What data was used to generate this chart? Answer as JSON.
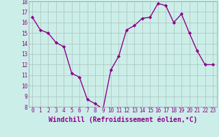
{
  "x": [
    0,
    1,
    2,
    3,
    4,
    5,
    6,
    7,
    8,
    9,
    10,
    11,
    12,
    13,
    14,
    15,
    16,
    17,
    18,
    19,
    20,
    21,
    22,
    23
  ],
  "y": [
    16.5,
    15.3,
    15.0,
    14.1,
    13.7,
    11.2,
    10.8,
    8.7,
    8.3,
    7.8,
    11.5,
    12.8,
    15.3,
    15.7,
    16.4,
    16.5,
    17.8,
    17.6,
    16.0,
    16.8,
    15.0,
    13.3,
    12.0,
    12.0
  ],
  "line_color": "#8b008b",
  "marker": "D",
  "marker_size": 2.2,
  "bg_color": "#cceee8",
  "grid_color": "#b0c8c4",
  "xlabel": "Windchill (Refroidissement éolien,°C)",
  "ylim": [
    8,
    18
  ],
  "yticks": [
    8,
    9,
    10,
    11,
    12,
    13,
    14,
    15,
    16,
    17,
    18
  ],
  "xticks": [
    0,
    1,
    2,
    3,
    4,
    5,
    6,
    7,
    8,
    9,
    10,
    11,
    12,
    13,
    14,
    15,
    16,
    17,
    18,
    19,
    20,
    21,
    22,
    23
  ],
  "tick_color": "#8b008b",
  "tick_fontsize": 5.5,
  "xlabel_fontsize": 7.0,
  "line_width": 1.0
}
